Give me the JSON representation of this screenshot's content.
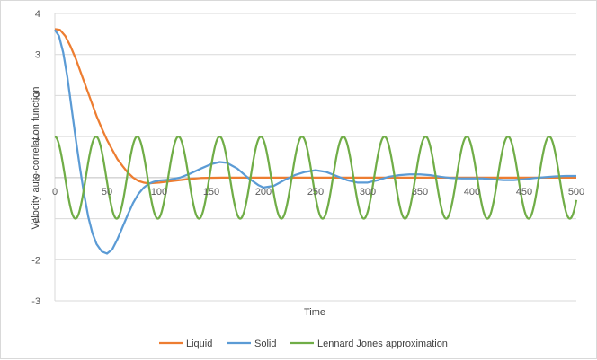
{
  "chart_data": {
    "type": "line",
    "title": "",
    "xlabel": "Time",
    "ylabel": "Velocity auto-correlation function",
    "xlim": [
      0,
      500
    ],
    "ylim": [
      -3,
      4
    ],
    "x_ticks": [
      "0",
      "50",
      "100",
      "150",
      "200",
      "250",
      "300",
      "350",
      "400",
      "450",
      "500"
    ],
    "y_ticks": [
      "4",
      "3",
      "2",
      "1",
      "0",
      "-1",
      "-2",
      "-3"
    ],
    "grid": "horizontal",
    "legend_position": "bottom",
    "series": [
      {
        "name": "Liquid",
        "color": "#ED7D31",
        "x": [
          0,
          5,
          10,
          15,
          20,
          25,
          30,
          35,
          40,
          45,
          50,
          55,
          60,
          65,
          70,
          75,
          80,
          85,
          90,
          95,
          100,
          110,
          120,
          130,
          140,
          160,
          200,
          300,
          400,
          500
        ],
        "y": [
          3.62,
          3.6,
          3.45,
          3.2,
          2.9,
          2.55,
          2.2,
          1.85,
          1.5,
          1.2,
          0.92,
          0.68,
          0.45,
          0.28,
          0.12,
          0.0,
          -0.08,
          -0.12,
          -0.14,
          -0.13,
          -0.12,
          -0.09,
          -0.06,
          -0.03,
          -0.01,
          0.0,
          0.0,
          0.0,
          0.0,
          0.0
        ]
      },
      {
        "name": "Solid",
        "color": "#5B9BD5",
        "x": [
          0,
          4,
          8,
          12,
          16,
          20,
          24,
          28,
          32,
          36,
          40,
          45,
          50,
          55,
          60,
          65,
          70,
          75,
          80,
          85,
          90,
          95,
          100,
          110,
          120,
          130,
          140,
          150,
          158,
          165,
          175,
          185,
          195,
          200,
          210,
          220,
          230,
          240,
          250,
          260,
          270,
          280,
          290,
          300,
          310,
          320,
          330,
          340,
          350,
          360,
          370,
          380,
          390,
          400,
          410,
          420,
          430,
          440,
          450,
          460,
          470,
          480,
          490,
          500
        ],
        "y": [
          3.6,
          3.45,
          3.05,
          2.45,
          1.7,
          0.95,
          0.25,
          -0.4,
          -0.95,
          -1.35,
          -1.62,
          -1.8,
          -1.85,
          -1.75,
          -1.5,
          -1.2,
          -0.9,
          -0.62,
          -0.4,
          -0.25,
          -0.15,
          -0.1,
          -0.07,
          -0.05,
          0.0,
          0.1,
          0.22,
          0.33,
          0.38,
          0.36,
          0.22,
          0.0,
          -0.18,
          -0.24,
          -0.2,
          -0.06,
          0.06,
          0.14,
          0.18,
          0.14,
          0.04,
          -0.06,
          -0.12,
          -0.12,
          -0.06,
          0.02,
          0.06,
          0.08,
          0.08,
          0.06,
          0.02,
          -0.01,
          -0.02,
          -0.02,
          -0.02,
          -0.04,
          -0.06,
          -0.06,
          -0.04,
          -0.01,
          0.01,
          0.03,
          0.04,
          0.04
        ]
      },
      {
        "name": "Lennard Jones approximation",
        "color": "#70AD47",
        "model": "cosine",
        "amplitude": 1,
        "period": 39.5
      }
    ]
  }
}
